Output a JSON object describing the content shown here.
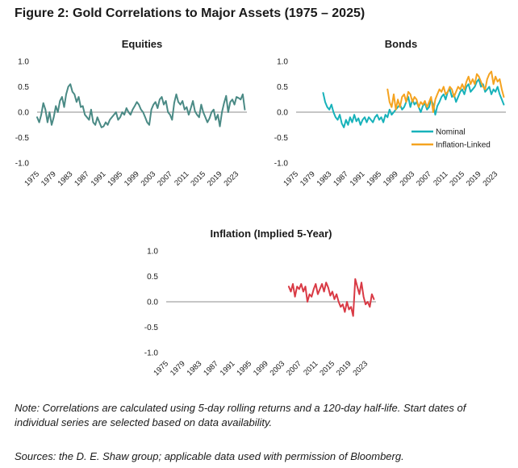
{
  "figure": {
    "title": "Figure 2: Gold Correlations to Major Assets (1975 – 2025)",
    "note": "Note: Correlations are calculated using 5-day rolling returns and a 120-day half-life. Start dates of individual series are selected based on data availability.",
    "sources": "Sources: the D. E. Shaw group; applicable data used with permission of Bloomberg."
  },
  "chart_data": [
    {
      "type": "line",
      "title": "Equities",
      "xlabel": "",
      "ylabel": "",
      "xlim": [
        1975,
        2025.5
      ],
      "ylim": [
        -1.0,
        1.0
      ],
      "y_ticks": [
        1.0,
        0.5,
        0.0,
        -0.5,
        -1.0
      ],
      "y_tick_labels": [
        "1.0",
        "0.5",
        "0.0",
        "-0.5",
        "-1.0"
      ],
      "x_tick_labels": [
        "1975",
        "1979",
        "1983",
        "1987",
        "1991",
        "1995",
        "1999",
        "2003",
        "2007",
        "2011",
        "2015",
        "2019",
        "2023"
      ],
      "legend": [],
      "series": [
        {
          "name": "Equities",
          "color": "#4a8a85",
          "x": [
            1975,
            1975.5,
            1976,
            1976.5,
            1977,
            1977.5,
            1978,
            1978.5,
            1979,
            1979.5,
            1980,
            1980.5,
            1981,
            1981.5,
            1982,
            1982.5,
            1983,
            1983.5,
            1984,
            1984.5,
            1985,
            1985.5,
            1986,
            1986.5,
            1987,
            1987.5,
            1988,
            1988.5,
            1989,
            1989.5,
            1990,
            1990.5,
            1991,
            1991.5,
            1992,
            1992.5,
            1993,
            1993.5,
            1994,
            1994.5,
            1995,
            1995.5,
            1996,
            1996.5,
            1997,
            1997.5,
            1998,
            1998.5,
            1999,
            1999.5,
            2000,
            2000.5,
            2001,
            2001.5,
            2002,
            2002.5,
            2003,
            2003.5,
            2004,
            2004.5,
            2005,
            2005.5,
            2006,
            2006.5,
            2007,
            2007.5,
            2008,
            2008.5,
            2009,
            2009.5,
            2010,
            2010.5,
            2011,
            2011.5,
            2012,
            2012.5,
            2013,
            2013.5,
            2014,
            2014.5,
            2015,
            2015.5,
            2016,
            2016.5,
            2017,
            2017.5,
            2018,
            2018.5,
            2019,
            2019.5,
            2020,
            2020.5,
            2021,
            2021.5,
            2022,
            2022.5,
            2023,
            2023.5,
            2024,
            2024.5,
            2025
          ],
          "y": [
            -0.1,
            -0.2,
            -0.05,
            0.18,
            0.05,
            -0.2,
            0.0,
            -0.25,
            -0.1,
            0.12,
            0.0,
            0.22,
            0.3,
            0.1,
            0.35,
            0.5,
            0.55,
            0.4,
            0.35,
            0.2,
            0.3,
            0.1,
            0.12,
            -0.05,
            -0.1,
            -0.15,
            0.05,
            -0.2,
            -0.25,
            -0.1,
            -0.2,
            -0.3,
            -0.28,
            -0.2,
            -0.25,
            -0.15,
            -0.1,
            -0.05,
            0.0,
            -0.15,
            -0.1,
            0.0,
            -0.05,
            0.08,
            0.0,
            -0.05,
            0.05,
            0.12,
            0.2,
            0.15,
            0.05,
            0.0,
            -0.1,
            -0.2,
            -0.25,
            0.05,
            0.15,
            0.2,
            0.08,
            0.25,
            0.3,
            0.15,
            0.22,
            0.0,
            -0.05,
            -0.15,
            0.18,
            0.35,
            0.2,
            0.15,
            0.22,
            0.05,
            0.1,
            -0.05,
            0.08,
            0.22,
            0.02,
            -0.05,
            -0.1,
            0.15,
            0.0,
            -0.1,
            -0.2,
            -0.12,
            0.0,
            0.05,
            -0.15,
            -0.05,
            -0.28,
            0.0,
            0.18,
            0.32,
            0.0,
            0.2,
            0.25,
            0.15,
            0.3,
            0.28,
            0.25,
            0.35,
            0.05
          ]
        }
      ]
    },
    {
      "type": "line",
      "title": "Bonds",
      "xlabel": "",
      "ylabel": "",
      "xlim": [
        1975,
        2025.5
      ],
      "ylim": [
        -1.0,
        1.0
      ],
      "y_ticks": [
        1.0,
        0.5,
        0.0,
        -0.5,
        -1.0
      ],
      "y_tick_labels": [
        "1.0",
        "0.5",
        "0.0",
        "-0.5",
        "-1.0"
      ],
      "x_tick_labels": [
        "1975",
        "1979",
        "1983",
        "1987",
        "1991",
        "1995",
        "1999",
        "2003",
        "2007",
        "2011",
        "2015",
        "2019",
        "2023"
      ],
      "legend": [
        "Nominal",
        "Inflation-Linked"
      ],
      "series": [
        {
          "name": "Nominal",
          "color": "#17b2ba",
          "x": [
            1981.5,
            1982,
            1982.5,
            1983,
            1983.5,
            1984,
            1984.5,
            1985,
            1985.5,
            1986,
            1986.5,
            1987,
            1987.5,
            1988,
            1988.5,
            1989,
            1989.5,
            1990,
            1990.5,
            1991,
            1991.5,
            1992,
            1992.5,
            1993,
            1993.5,
            1994,
            1994.5,
            1995,
            1995.5,
            1996,
            1996.5,
            1997,
            1997.5,
            1998,
            1998.5,
            1999,
            1999.5,
            2000,
            2000.5,
            2001,
            2001.5,
            2002,
            2002.5,
            2003,
            2003.5,
            2004,
            2004.5,
            2005,
            2005.5,
            2006,
            2006.5,
            2007,
            2007.5,
            2008,
            2008.5,
            2009,
            2009.5,
            2010,
            2010.5,
            2011,
            2011.5,
            2012,
            2012.5,
            2013,
            2013.5,
            2014,
            2014.5,
            2015,
            2015.5,
            2016,
            2016.5,
            2017,
            2017.5,
            2018,
            2018.5,
            2019,
            2019.5,
            2020,
            2020.5,
            2021,
            2021.5,
            2022,
            2022.5,
            2023,
            2023.5,
            2024,
            2024.5,
            2025
          ],
          "y": [
            0.38,
            0.2,
            0.1,
            0.05,
            0.15,
            0.0,
            -0.1,
            -0.15,
            -0.05,
            -0.22,
            -0.3,
            -0.15,
            -0.25,
            -0.1,
            -0.2,
            -0.05,
            -0.18,
            -0.12,
            -0.25,
            -0.15,
            -0.1,
            -0.2,
            -0.1,
            -0.15,
            -0.2,
            -0.1,
            -0.05,
            -0.15,
            -0.1,
            -0.2,
            -0.05,
            -0.1,
            0.05,
            -0.05,
            0.0,
            0.05,
            0.1,
            0.15,
            0.05,
            0.1,
            0.2,
            0.3,
            0.1,
            0.25,
            0.15,
            0.2,
            0.1,
            0.0,
            0.12,
            0.18,
            0.05,
            0.1,
            0.25,
            0.15,
            -0.05,
            0.12,
            0.2,
            0.3,
            0.35,
            0.25,
            0.4,
            0.45,
            0.3,
            0.35,
            0.2,
            0.3,
            0.4,
            0.45,
            0.35,
            0.5,
            0.55,
            0.4,
            0.45,
            0.5,
            0.6,
            0.65,
            0.5,
            0.55,
            0.4,
            0.45,
            0.5,
            0.35,
            0.45,
            0.4,
            0.5,
            0.35,
            0.25,
            0.15
          ]
        },
        {
          "name": "Inflation-Linked",
          "color": "#f5a320",
          "x": [
            1997,
            1997.5,
            1998,
            1998.5,
            1999,
            1999.5,
            2000,
            2000.5,
            2001,
            2001.5,
            2002,
            2002.5,
            2003,
            2003.5,
            2004,
            2004.5,
            2005,
            2005.5,
            2006,
            2006.5,
            2007,
            2007.5,
            2008,
            2008.5,
            2009,
            2009.5,
            2010,
            2010.5,
            2011,
            2011.5,
            2012,
            2012.5,
            2013,
            2013.5,
            2014,
            2014.5,
            2015,
            2015.5,
            2016,
            2016.5,
            2017,
            2017.5,
            2018,
            2018.5,
            2019,
            2019.5,
            2020,
            2020.5,
            2021,
            2021.5,
            2022,
            2022.5,
            2023,
            2023.5,
            2024,
            2024.5,
            2025
          ],
          "y": [
            0.45,
            0.2,
            0.1,
            0.35,
            0.05,
            0.25,
            0.1,
            0.3,
            0.35,
            0.2,
            0.4,
            0.35,
            0.2,
            0.3,
            0.25,
            0.1,
            0.2,
            0.15,
            0.22,
            0.1,
            0.2,
            0.3,
            0.0,
            0.25,
            0.35,
            0.45,
            0.4,
            0.5,
            0.35,
            0.4,
            0.5,
            0.45,
            0.3,
            0.4,
            0.5,
            0.45,
            0.55,
            0.45,
            0.6,
            0.7,
            0.55,
            0.65,
            0.55,
            0.75,
            0.7,
            0.6,
            0.5,
            0.45,
            0.65,
            0.75,
            0.8,
            0.55,
            0.7,
            0.6,
            0.65,
            0.45,
            0.3
          ]
        }
      ]
    },
    {
      "type": "line",
      "title": "Inflation (Implied 5-Year)",
      "xlabel": "",
      "ylabel": "",
      "xlim": [
        1975,
        2025.5
      ],
      "ylim": [
        -1.0,
        1.0
      ],
      "y_ticks": [
        1.0,
        0.5,
        0.0,
        -0.5,
        -1.0
      ],
      "y_tick_labels": [
        "1.0",
        "0.5",
        "0.0",
        "-0.5",
        "-1.0"
      ],
      "x_tick_labels": [
        "1975",
        "1979",
        "1983",
        "1987",
        "1991",
        "1995",
        "1999",
        "2003",
        "2007",
        "2011",
        "2015",
        "2019",
        "2023"
      ],
      "legend": [],
      "series": [
        {
          "name": "Inflation (Implied 5-Year)",
          "color": "#d93a45",
          "x": [
            2004.5,
            2005,
            2005.5,
            2006,
            2006.5,
            2007,
            2007.5,
            2008,
            2008.5,
            2009,
            2009.5,
            2010,
            2010.5,
            2011,
            2011.5,
            2012,
            2012.5,
            2013,
            2013.5,
            2014,
            2014.5,
            2015,
            2015.5,
            2016,
            2016.5,
            2017,
            2017.5,
            2018,
            2018.5,
            2019,
            2019.5,
            2020,
            2020.5,
            2021,
            2021.5,
            2022,
            2022.5,
            2023,
            2023.5,
            2024,
            2024.5,
            2025
          ],
          "y": [
            0.3,
            0.2,
            0.35,
            0.1,
            0.3,
            0.25,
            0.35,
            0.2,
            0.3,
            0.0,
            0.15,
            0.1,
            0.25,
            0.35,
            0.15,
            0.25,
            0.35,
            0.2,
            0.38,
            0.28,
            0.12,
            0.2,
            0.05,
            0.15,
            0.0,
            -0.1,
            -0.05,
            -0.2,
            0.0,
            -0.15,
            -0.1,
            -0.28,
            0.45,
            0.3,
            0.15,
            0.38,
            0.1,
            -0.05,
            0.0,
            -0.1,
            0.15,
            0.05
          ]
        }
      ]
    }
  ]
}
